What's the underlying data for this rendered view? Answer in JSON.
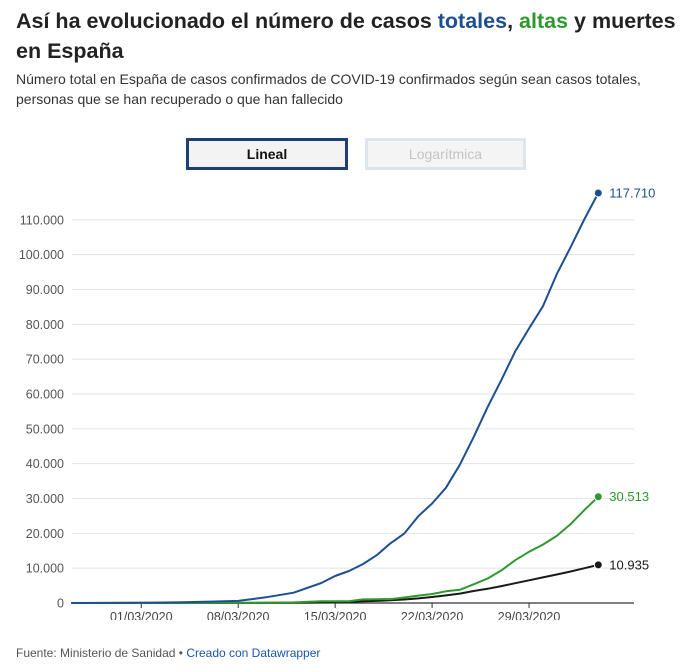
{
  "header": {
    "title_parts": [
      {
        "text": "Así ha evolucionado el número de casos ",
        "color": "#222222"
      },
      {
        "text": "totales",
        "color": "#1d4f91"
      },
      {
        "text": ", ",
        "color": "#222222"
      },
      {
        "text": "altas",
        "color": "#2e9a2e"
      },
      {
        "text": " y muertes en España",
        "color": "#222222"
      }
    ],
    "subtitle": "Número total en España de casos confirmados de COVID-19 confirmados según sean casos totales, personas que se han recuperado o que han fallecido"
  },
  "toggle": {
    "linear_label": "Lineal",
    "log_label": "Logarítmica",
    "selected": "Lineal"
  },
  "footer": {
    "source": "Fuente: Ministerio de Sanidad",
    "separator": " • ",
    "credit": "Creado con Datawrapper"
  },
  "chart_data": {
    "type": "line",
    "title": "",
    "xlabel": "",
    "ylabel": "",
    "ylim": [
      0,
      117710
    ],
    "yticks": [
      0,
      10000,
      20000,
      30000,
      40000,
      50000,
      60000,
      70000,
      80000,
      90000,
      100000,
      110000
    ],
    "ytick_labels": [
      "0",
      "10.000",
      "20.000",
      "30.000",
      "40.000",
      "50.000",
      "60.000",
      "70.000",
      "80.000",
      "90.000",
      "100.000",
      "110.000"
    ],
    "xticks": [
      "2020-03-01",
      "2020-03-08",
      "2020-03-15",
      "2020-03-22",
      "2020-03-29"
    ],
    "xtick_labels": [
      "01/03/2020",
      "08/03/2020",
      "15/03/2020",
      "22/03/2020",
      "29/03/2020"
    ],
    "xlim": [
      "2020-02-25",
      "2020-04-05"
    ],
    "grid": "horizontal",
    "legend": "none",
    "series": [
      {
        "name": "totales",
        "color": "#1d4f91",
        "end_label": "117.710",
        "points": [
          [
            "2020-02-25",
            4
          ],
          [
            "2020-02-27",
            17
          ],
          [
            "2020-02-29",
            45
          ],
          [
            "2020-03-02",
            120
          ],
          [
            "2020-03-04",
            222
          ],
          [
            "2020-03-06",
            401
          ],
          [
            "2020-03-08",
            589
          ],
          [
            "2020-03-10",
            1639
          ],
          [
            "2020-03-12",
            2965
          ],
          [
            "2020-03-14",
            5753
          ],
          [
            "2020-03-15",
            7753
          ],
          [
            "2020-03-16",
            9191
          ],
          [
            "2020-03-17",
            11178
          ],
          [
            "2020-03-18",
            13716
          ],
          [
            "2020-03-19",
            17147
          ],
          [
            "2020-03-20",
            19980
          ],
          [
            "2020-03-21",
            24926
          ],
          [
            "2020-03-22",
            28572
          ],
          [
            "2020-03-23",
            33089
          ],
          [
            "2020-03-24",
            39673
          ],
          [
            "2020-03-25",
            47610
          ],
          [
            "2020-03-26",
            56188
          ],
          [
            "2020-03-27",
            64059
          ],
          [
            "2020-03-28",
            72248
          ],
          [
            "2020-03-29",
            78797
          ],
          [
            "2020-03-30",
            85195
          ],
          [
            "2020-03-31",
            94417
          ],
          [
            "2020-04-01",
            102136
          ],
          [
            "2020-04-02",
            110238
          ],
          [
            "2020-04-03",
            117710
          ]
        ]
      },
      {
        "name": "altas",
        "color": "#2e9a2e",
        "end_label": "30.513",
        "points": [
          [
            "2020-02-25",
            0
          ],
          [
            "2020-03-08",
            30
          ],
          [
            "2020-03-12",
            183
          ],
          [
            "2020-03-14",
            517
          ],
          [
            "2020-03-16",
            530
          ],
          [
            "2020-03-17",
            1028
          ],
          [
            "2020-03-18",
            1081
          ],
          [
            "2020-03-19",
            1107
          ],
          [
            "2020-03-20",
            1588
          ],
          [
            "2020-03-21",
            2125
          ],
          [
            "2020-03-22",
            2575
          ],
          [
            "2020-03-23",
            3355
          ],
          [
            "2020-03-24",
            3794
          ],
          [
            "2020-03-25",
            5367
          ],
          [
            "2020-03-26",
            7015
          ],
          [
            "2020-03-27",
            9357
          ],
          [
            "2020-03-28",
            12285
          ],
          [
            "2020-03-29",
            14709
          ],
          [
            "2020-03-30",
            16780
          ],
          [
            "2020-03-31",
            19259
          ],
          [
            "2020-04-01",
            22647
          ],
          [
            "2020-04-02",
            26743
          ],
          [
            "2020-04-03",
            30513
          ]
        ]
      },
      {
        "name": "muertes",
        "color": "#1a1a1a",
        "end_label": "10.935",
        "points": [
          [
            "2020-02-25",
            0
          ],
          [
            "2020-03-08",
            17
          ],
          [
            "2020-03-10",
            36
          ],
          [
            "2020-03-12",
            84
          ],
          [
            "2020-03-14",
            136
          ],
          [
            "2020-03-15",
            288
          ],
          [
            "2020-03-16",
            309
          ],
          [
            "2020-03-17",
            491
          ],
          [
            "2020-03-18",
            598
          ],
          [
            "2020-03-19",
            767
          ],
          [
            "2020-03-20",
            1002
          ],
          [
            "2020-03-21",
            1326
          ],
          [
            "2020-03-22",
            1720
          ],
          [
            "2020-03-23",
            2182
          ],
          [
            "2020-03-24",
            2696
          ],
          [
            "2020-03-25",
            3434
          ],
          [
            "2020-03-26",
            4089
          ],
          [
            "2020-03-27",
            4858
          ],
          [
            "2020-03-28",
            5690
          ],
          [
            "2020-03-29",
            6528
          ],
          [
            "2020-03-30",
            7340
          ],
          [
            "2020-03-31",
            8189
          ],
          [
            "2020-04-01",
            9053
          ],
          [
            "2020-04-02",
            10003
          ],
          [
            "2020-04-03",
            10935
          ]
        ]
      }
    ]
  }
}
